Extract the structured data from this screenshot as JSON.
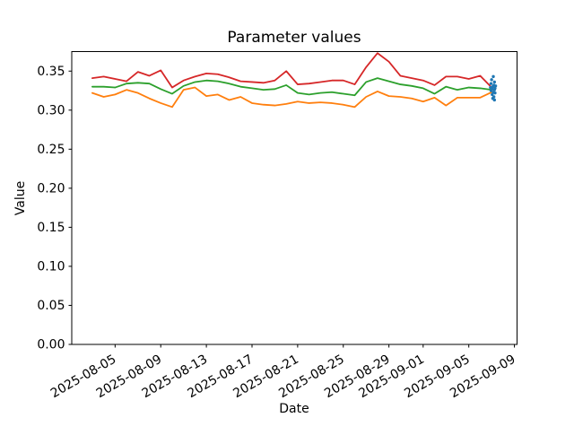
{
  "figure": {
    "background": "#ffffff",
    "text_color": "#000000",
    "spine_color": "#000000"
  },
  "chart_data": {
    "type": "line",
    "title": "Parameter values",
    "xlabel": "Date",
    "ylabel": "Value",
    "grid": false,
    "legend": null,
    "ylim": [
      0,
      0.375
    ],
    "xlim": {
      "epoch": "2025-08-01",
      "range_days": [
        0.2,
        39.23
      ]
    },
    "x_dates": [
      "2025-08-03",
      "2025-08-04",
      "2025-08-05",
      "2025-08-06",
      "2025-08-07",
      "2025-08-08",
      "2025-08-09",
      "2025-08-10",
      "2025-08-11",
      "2025-08-12",
      "2025-08-13",
      "2025-08-14",
      "2025-08-15",
      "2025-08-16",
      "2025-08-17",
      "2025-08-18",
      "2025-08-19",
      "2025-08-20",
      "2025-08-21",
      "2025-08-22",
      "2025-08-23",
      "2025-08-24",
      "2025-08-25",
      "2025-08-26",
      "2025-08-27",
      "2025-08-28",
      "2025-08-29",
      "2025-08-30",
      "2025-08-31",
      "2025-09-01",
      "2025-09-02",
      "2025-09-03",
      "2025-09-04",
      "2025-09-05",
      "2025-09-06",
      "2025-09-07"
    ],
    "series": [
      {
        "name": "red-line",
        "color": "#d62728",
        "values": [
          0.341,
          0.343,
          0.34,
          0.337,
          0.349,
          0.344,
          0.351,
          0.329,
          0.338,
          0.343,
          0.347,
          0.346,
          0.342,
          0.337,
          0.336,
          0.335,
          0.338,
          0.35,
          0.333,
          0.334,
          0.336,
          0.338,
          0.338,
          0.333,
          0.355,
          0.373,
          0.362,
          0.344,
          0.341,
          0.338,
          0.332,
          0.343,
          0.343,
          0.34,
          0.344,
          0.329
        ]
      },
      {
        "name": "green-line",
        "color": "#2ca02c",
        "values": [
          0.33,
          0.33,
          0.329,
          0.334,
          0.335,
          0.334,
          0.327,
          0.321,
          0.331,
          0.336,
          0.338,
          0.337,
          0.334,
          0.33,
          0.328,
          0.326,
          0.327,
          0.332,
          0.322,
          0.32,
          0.322,
          0.323,
          0.321,
          0.319,
          0.336,
          0.341,
          0.337,
          0.333,
          0.331,
          0.328,
          0.321,
          0.33,
          0.326,
          0.329,
          0.328,
          0.326
        ]
      },
      {
        "name": "orange-line",
        "color": "#ff7f0e",
        "values": [
          0.322,
          0.317,
          0.32,
          0.326,
          0.322,
          0.315,
          0.309,
          0.304,
          0.326,
          0.329,
          0.318,
          0.32,
          0.313,
          0.317,
          0.309,
          0.307,
          0.306,
          0.308,
          0.311,
          0.309,
          0.31,
          0.309,
          0.307,
          0.304,
          0.317,
          0.324,
          0.318,
          0.317,
          0.315,
          0.311,
          0.316,
          0.306,
          0.316,
          0.316,
          0.316,
          0.323
        ]
      }
    ],
    "scatter": {
      "name": "blue-scatter-cluster",
      "color": "#1f77b4",
      "date": "2025-09-07",
      "points": [
        {
          "v": 0.343,
          "dx": 0.15
        },
        {
          "v": 0.339,
          "dx": 0.0
        },
        {
          "v": 0.336,
          "dx": 0.25
        },
        {
          "v": 0.334,
          "dx": -0.05
        },
        {
          "v": 0.332,
          "dx": 0.2
        },
        {
          "v": 0.331,
          "dx": 0.35
        },
        {
          "v": 0.33,
          "dx": 0.1
        },
        {
          "v": 0.329,
          "dx": -0.1
        },
        {
          "v": 0.328,
          "dx": 0.3
        },
        {
          "v": 0.327,
          "dx": 0.05
        },
        {
          "v": 0.326,
          "dx": 0.25
        },
        {
          "v": 0.325,
          "dx": -0.05
        },
        {
          "v": 0.323,
          "dx": 0.15
        },
        {
          "v": 0.322,
          "dx": 0.3
        },
        {
          "v": 0.32,
          "dx": 0.05
        },
        {
          "v": 0.317,
          "dx": 0.2
        },
        {
          "v": 0.315,
          "dx": 0.1
        },
        {
          "v": 0.313,
          "dx": 0.25
        }
      ]
    },
    "x_ticks": [
      "2025-08-05",
      "2025-08-09",
      "2025-08-13",
      "2025-08-17",
      "2025-08-21",
      "2025-08-25",
      "2025-08-29",
      "2025-09-01",
      "2025-09-05",
      "2025-09-09"
    ],
    "y_ticks": [
      {
        "v": 0.0,
        "label": "0.00"
      },
      {
        "v": 0.05,
        "label": "0.05"
      },
      {
        "v": 0.1,
        "label": "0.10"
      },
      {
        "v": 0.15,
        "label": "0.15"
      },
      {
        "v": 0.2,
        "label": "0.20"
      },
      {
        "v": 0.25,
        "label": "0.25"
      },
      {
        "v": 0.3,
        "label": "0.30"
      },
      {
        "v": 0.35,
        "label": "0.35"
      }
    ]
  }
}
